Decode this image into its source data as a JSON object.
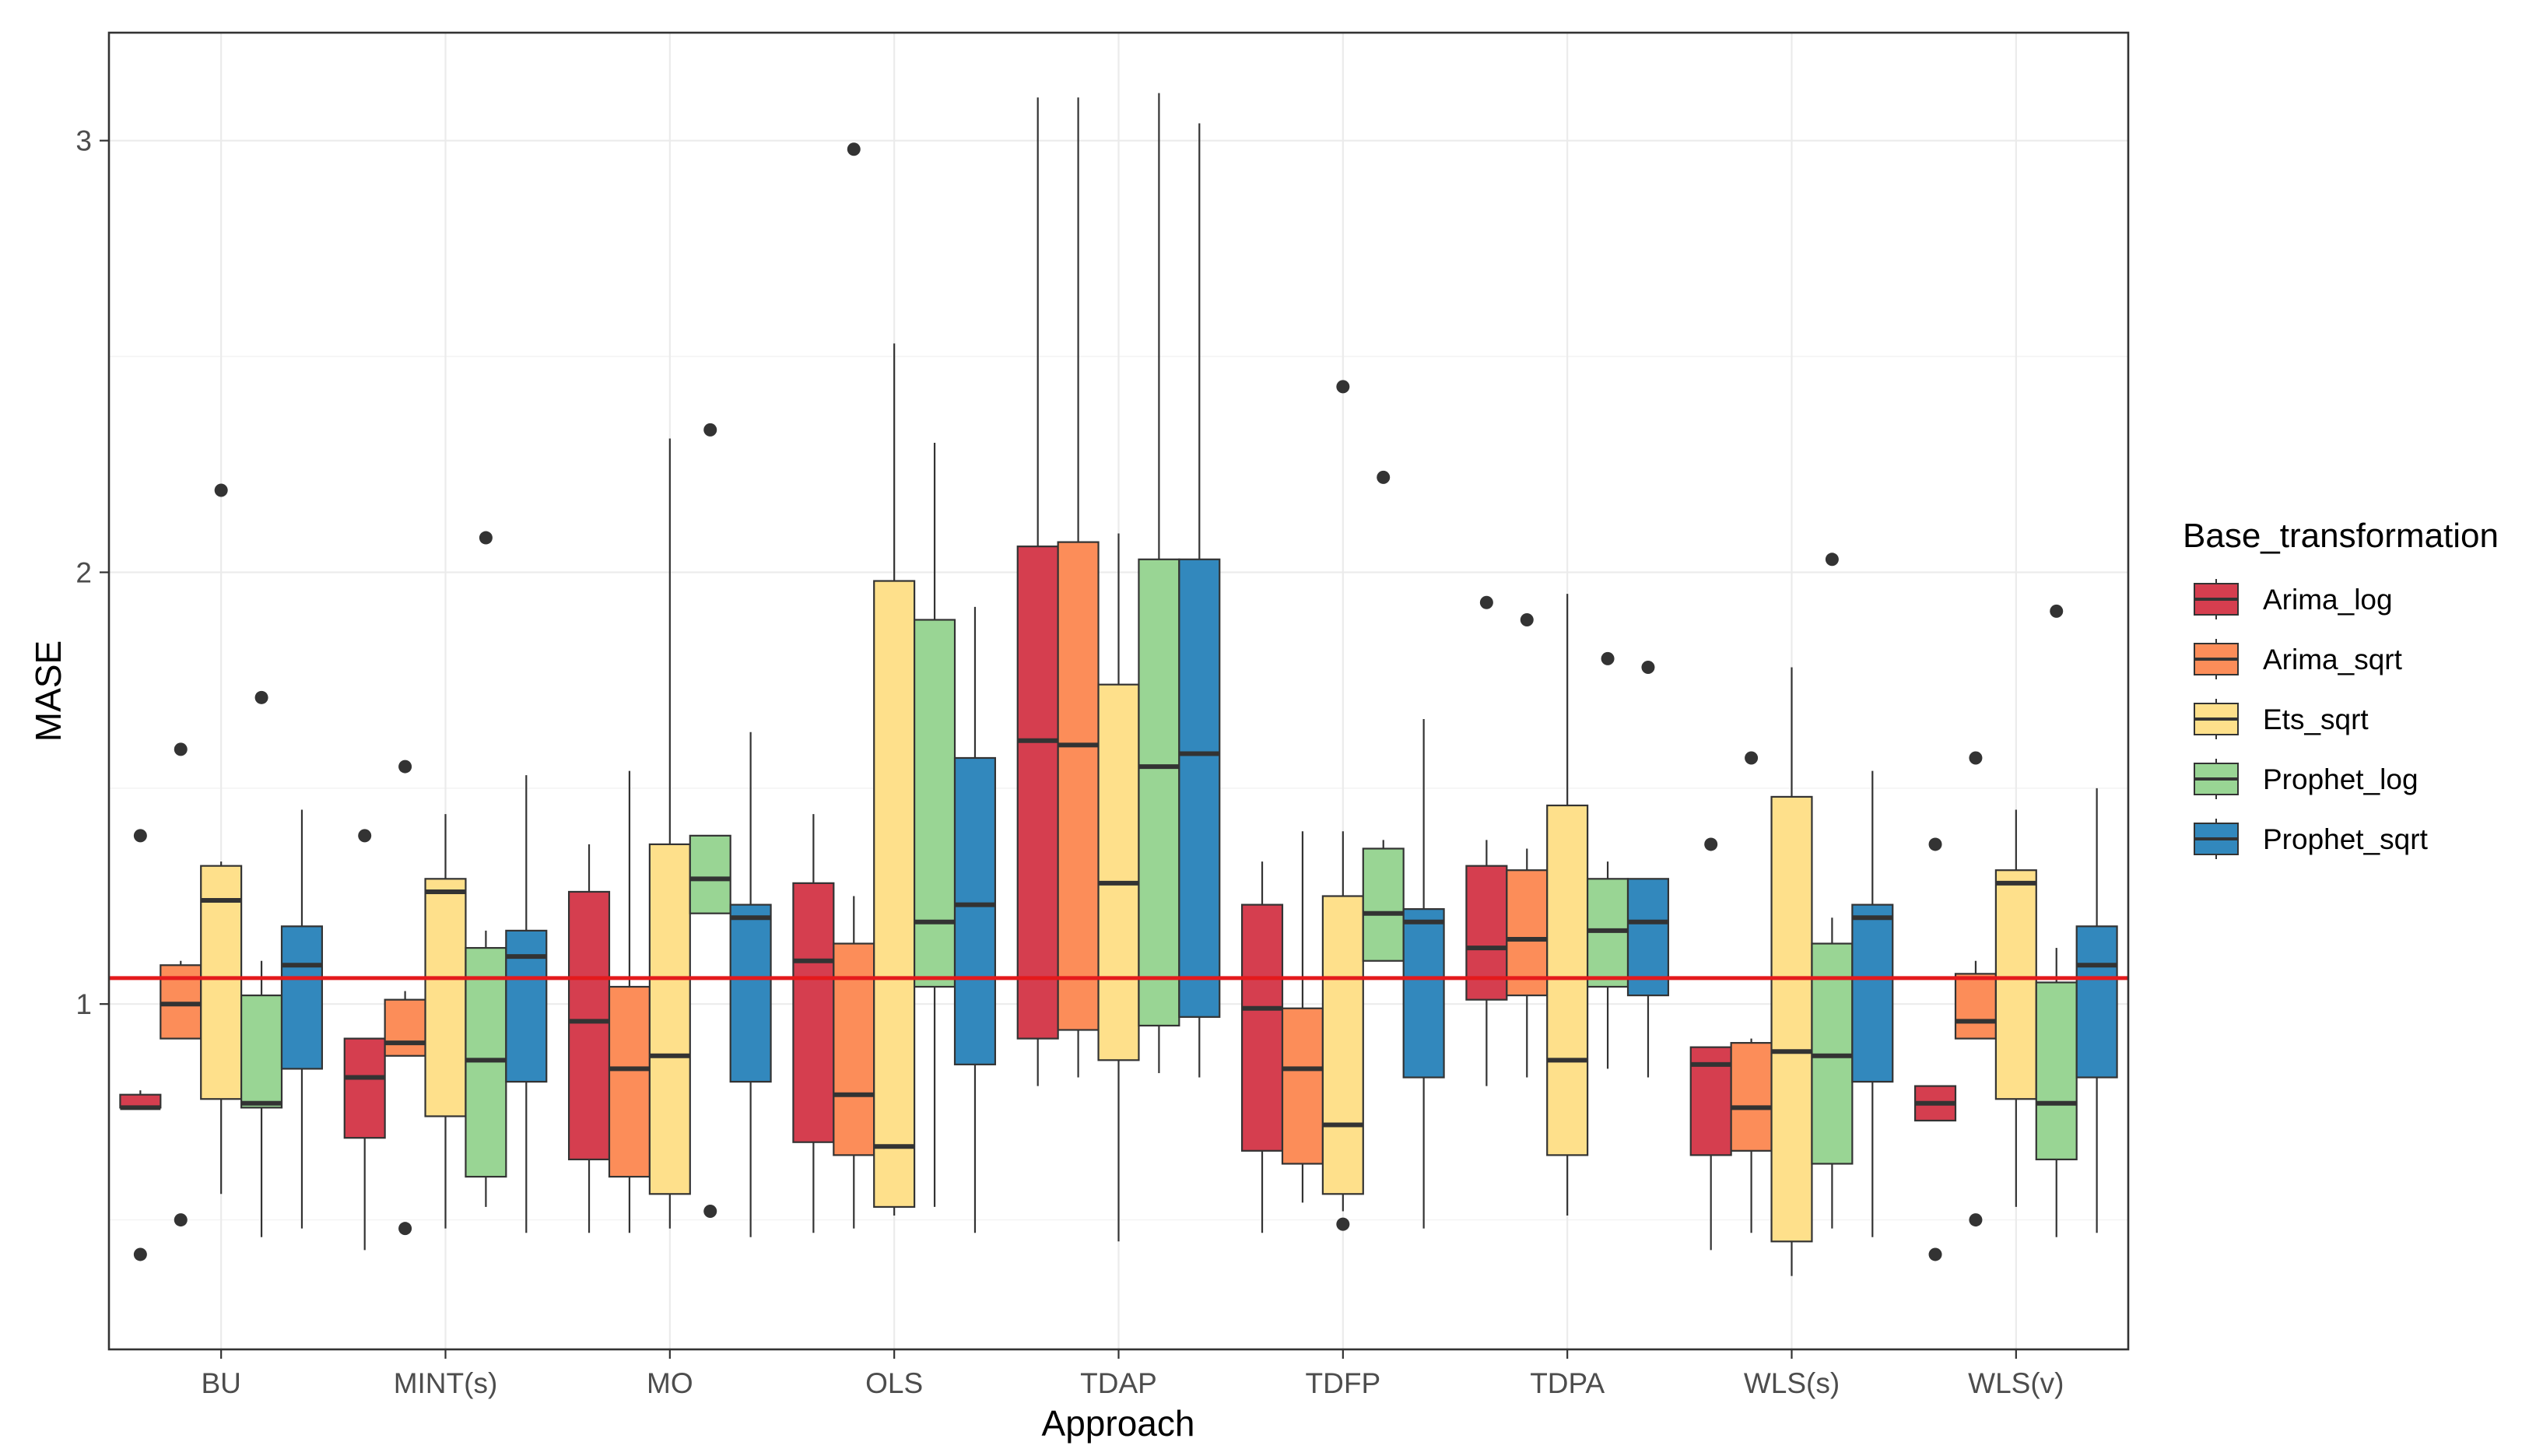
{
  "chart_data": {
    "type": "boxplot",
    "title": "",
    "xlabel": "Approach",
    "ylabel": "MASE",
    "ylim": [
      0.2,
      3.25
    ],
    "yticks": [
      1,
      2,
      3
    ],
    "categories": [
      "BU",
      "MINT(s)",
      "MO",
      "OLS",
      "TDAP",
      "TDFP",
      "TDPA",
      "WLS(s)",
      "WLS(v)"
    ],
    "legend": {
      "title": "Base_transformation",
      "placement": "right"
    },
    "reference_line": {
      "value": 1.06,
      "color": "#e41a1c"
    },
    "colors": {
      "Arima_log": "#d53e4f",
      "Arima_sqrt": "#fc8d59",
      "Ets_sqrt": "#fee08b",
      "Prophet_log": "#99d594",
      "Prophet_sqrt": "#3288bd"
    },
    "series": [
      {
        "name": "Arima_log",
        "boxes": [
          {
            "whislo": 0.76,
            "q1": 0.76,
            "med": 0.76,
            "q3": 0.79,
            "whishi": 0.8,
            "outliers": [
              0.42,
              1.39
            ]
          },
          {
            "whislo": 0.43,
            "q1": 0.69,
            "med": 0.83,
            "q3": 0.92,
            "whishi": 0.92,
            "outliers": [
              1.39
            ]
          },
          {
            "whislo": 0.47,
            "q1": 0.64,
            "med": 0.96,
            "q3": 1.26,
            "whishi": 1.37,
            "outliers": []
          },
          {
            "whislo": 0.47,
            "q1": 0.68,
            "med": 1.1,
            "q3": 1.28,
            "whishi": 1.44,
            "outliers": []
          },
          {
            "whislo": 0.81,
            "q1": 0.92,
            "med": 1.61,
            "q3": 2.06,
            "whishi": 3.1,
            "outliers": []
          },
          {
            "whislo": 0.47,
            "q1": 0.66,
            "med": 0.99,
            "q3": 1.23,
            "whishi": 1.33,
            "outliers": []
          },
          {
            "whislo": 0.81,
            "q1": 1.01,
            "med": 1.13,
            "q3": 1.32,
            "whishi": 1.38,
            "outliers": [
              1.93
            ]
          },
          {
            "whislo": 0.43,
            "q1": 0.65,
            "med": 0.86,
            "q3": 0.9,
            "whishi": 0.9,
            "outliers": [
              1.37
            ]
          },
          {
            "whislo": 0.73,
            "q1": 0.73,
            "med": 0.77,
            "q3": 0.81,
            "whishi": 0.81,
            "outliers": [
              0.42,
              1.37
            ]
          }
        ]
      },
      {
        "name": "Arima_sqrt",
        "boxes": [
          {
            "whislo": 0.92,
            "q1": 0.92,
            "med": 1.0,
            "q3": 1.09,
            "whishi": 1.1,
            "outliers": [
              0.5,
              1.59
            ]
          },
          {
            "whislo": 0.88,
            "q1": 0.88,
            "med": 0.91,
            "q3": 1.01,
            "whishi": 1.03,
            "outliers": [
              0.48,
              1.55
            ]
          },
          {
            "whislo": 0.47,
            "q1": 0.6,
            "med": 0.85,
            "q3": 1.04,
            "whishi": 1.54,
            "outliers": []
          },
          {
            "whislo": 0.48,
            "q1": 0.65,
            "med": 0.79,
            "q3": 1.14,
            "whishi": 1.25,
            "outliers": [
              2.98
            ]
          },
          {
            "whislo": 0.83,
            "q1": 0.94,
            "med": 1.6,
            "q3": 2.07,
            "whishi": 3.1,
            "outliers": []
          },
          {
            "whislo": 0.54,
            "q1": 0.63,
            "med": 0.85,
            "q3": 0.99,
            "whishi": 1.4,
            "outliers": []
          },
          {
            "whislo": 0.83,
            "q1": 1.02,
            "med": 1.15,
            "q3": 1.31,
            "whishi": 1.36,
            "outliers": [
              1.89
            ]
          },
          {
            "whislo": 0.47,
            "q1": 0.66,
            "med": 0.76,
            "q3": 0.91,
            "whishi": 0.92,
            "outliers": [
              1.57
            ]
          },
          {
            "whislo": 0.92,
            "q1": 0.92,
            "med": 0.96,
            "q3": 1.07,
            "whishi": 1.1,
            "outliers": [
              0.5,
              1.57
            ]
          }
        ]
      },
      {
        "name": "Ets_sqrt",
        "boxes": [
          {
            "whislo": 0.56,
            "q1": 0.78,
            "med": 1.24,
            "q3": 1.32,
            "whishi": 1.33,
            "outliers": [
              2.19
            ]
          },
          {
            "whislo": 0.48,
            "q1": 0.74,
            "med": 1.26,
            "q3": 1.29,
            "whishi": 1.44,
            "outliers": []
          },
          {
            "whislo": 0.48,
            "q1": 0.56,
            "med": 0.88,
            "q3": 1.37,
            "whishi": 2.31,
            "outliers": []
          },
          {
            "whislo": 0.51,
            "q1": 0.53,
            "med": 0.67,
            "q3": 1.98,
            "whishi": 2.53,
            "outliers": []
          },
          {
            "whislo": 0.45,
            "q1": 0.87,
            "med": 1.28,
            "q3": 1.74,
            "whishi": 2.09,
            "outliers": []
          },
          {
            "whislo": 0.52,
            "q1": 0.56,
            "med": 0.72,
            "q3": 1.25,
            "whishi": 1.4,
            "outliers": [
              0.49,
              2.43
            ]
          },
          {
            "whislo": 0.51,
            "q1": 0.65,
            "med": 0.87,
            "q3": 1.46,
            "whishi": 1.95,
            "outliers": []
          },
          {
            "whislo": 0.37,
            "q1": 0.45,
            "med": 0.89,
            "q3": 1.48,
            "whishi": 1.78,
            "outliers": []
          },
          {
            "whislo": 0.53,
            "q1": 0.78,
            "med": 1.28,
            "q3": 1.31,
            "whishi": 1.45,
            "outliers": []
          }
        ]
      },
      {
        "name": "Prophet_log",
        "boxes": [
          {
            "whislo": 0.46,
            "q1": 0.76,
            "med": 0.77,
            "q3": 1.02,
            "whishi": 1.1,
            "outliers": [
              1.71
            ]
          },
          {
            "whislo": 0.53,
            "q1": 0.6,
            "med": 0.87,
            "q3": 1.13,
            "whishi": 1.17,
            "outliers": [
              2.08
            ]
          },
          {
            "whislo": 1.21,
            "q1": 1.21,
            "med": 1.29,
            "q3": 1.39,
            "whishi": 1.39,
            "outliers": [
              0.52,
              2.33
            ]
          },
          {
            "whislo": 0.53,
            "q1": 1.04,
            "med": 1.19,
            "q3": 1.89,
            "whishi": 2.3,
            "outliers": []
          },
          {
            "whislo": 0.84,
            "q1": 0.95,
            "med": 1.55,
            "q3": 2.03,
            "whishi": 3.11,
            "outliers": []
          },
          {
            "whislo": 1.1,
            "q1": 1.1,
            "med": 1.21,
            "q3": 1.36,
            "whishi": 1.38,
            "outliers": [
              2.22
            ]
          },
          {
            "whislo": 0.85,
            "q1": 1.04,
            "med": 1.17,
            "q3": 1.29,
            "whishi": 1.33,
            "outliers": [
              1.8
            ]
          },
          {
            "whislo": 0.48,
            "q1": 0.63,
            "med": 0.88,
            "q3": 1.14,
            "whishi": 1.2,
            "outliers": [
              2.03
            ]
          },
          {
            "whislo": 0.46,
            "q1": 0.64,
            "med": 0.77,
            "q3": 1.05,
            "whishi": 1.13,
            "outliers": [
              1.91
            ]
          }
        ]
      },
      {
        "name": "Prophet_sqrt",
        "boxes": [
          {
            "whislo": 0.48,
            "q1": 0.85,
            "med": 1.09,
            "q3": 1.18,
            "whishi": 1.45,
            "outliers": []
          },
          {
            "whislo": 0.47,
            "q1": 0.82,
            "med": 1.11,
            "q3": 1.17,
            "whishi": 1.53,
            "outliers": []
          },
          {
            "whislo": 0.46,
            "q1": 0.82,
            "med": 1.2,
            "q3": 1.23,
            "whishi": 1.63,
            "outliers": []
          },
          {
            "whislo": 0.47,
            "q1": 0.86,
            "med": 1.23,
            "q3": 1.57,
            "whishi": 1.92,
            "outliers": []
          },
          {
            "whislo": 0.83,
            "q1": 0.97,
            "med": 1.58,
            "q3": 2.03,
            "whishi": 3.04,
            "outliers": []
          },
          {
            "whislo": 0.48,
            "q1": 0.83,
            "med": 1.19,
            "q3": 1.22,
            "whishi": 1.66,
            "outliers": []
          },
          {
            "whislo": 0.83,
            "q1": 1.02,
            "med": 1.19,
            "q3": 1.29,
            "whishi": 1.29,
            "outliers": [
              1.78
            ]
          },
          {
            "whislo": 0.46,
            "q1": 0.82,
            "med": 1.2,
            "q3": 1.23,
            "whishi": 1.54,
            "outliers": []
          },
          {
            "whislo": 0.47,
            "q1": 0.83,
            "med": 1.09,
            "q3": 1.18,
            "whishi": 1.5,
            "outliers": []
          }
        ]
      }
    ]
  }
}
